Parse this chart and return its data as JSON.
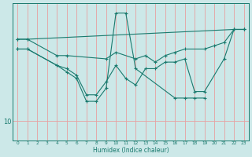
{
  "line_color": "#1a7a6e",
  "bg_color": "#cce8e8",
  "grid_color": "#e8a0a0",
  "xlabel": "Humidex (Indice chaleur)",
  "xlim": [
    -0.5,
    23.5
  ],
  "ylim": [
    7,
    28
  ],
  "ytick_value": 10,
  "series": [
    {
      "x": [
        0,
        1,
        22,
        23
      ],
      "y": [
        22.5,
        22.5,
        24,
        24
      ]
    },
    {
      "x": [
        0,
        1,
        4,
        5,
        9,
        10,
        12,
        13,
        14,
        15,
        16,
        17,
        19,
        20,
        21,
        22,
        23
      ],
      "y": [
        22.5,
        22.5,
        20,
        20,
        19.5,
        20.5,
        19.5,
        20,
        19,
        20,
        20.5,
        21,
        21,
        21.5,
        22,
        24,
        24
      ]
    },
    {
      "x": [
        0,
        1,
        4,
        5,
        6,
        7,
        8,
        9,
        10,
        11,
        12,
        13,
        14,
        15,
        16,
        17,
        18,
        19,
        21,
        22,
        23
      ],
      "y": [
        21,
        21,
        18.5,
        18,
        17,
        14,
        14,
        16,
        18.5,
        16.5,
        15.5,
        18,
        18,
        19,
        19,
        19.5,
        14.5,
        14.5,
        19.5,
        24,
        24
      ]
    },
    {
      "x": [
        0,
        1,
        4,
        5,
        6,
        7,
        8,
        9,
        10,
        11,
        12,
        16,
        17,
        18,
        19
      ],
      "y": [
        21,
        21,
        18.5,
        17.5,
        16.5,
        13,
        13,
        15,
        26.5,
        26.5,
        18,
        13.5,
        13.5,
        13.5,
        13.5
      ]
    }
  ]
}
